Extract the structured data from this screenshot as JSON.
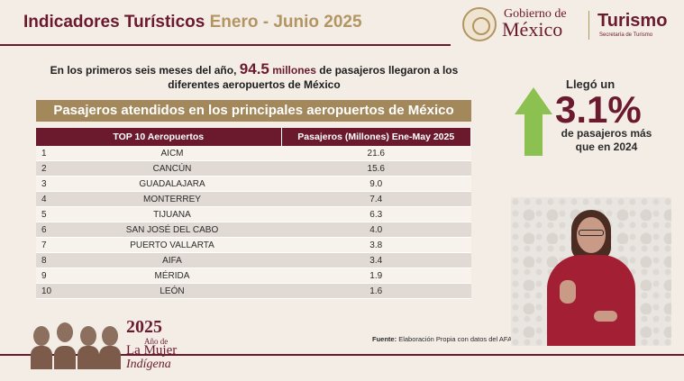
{
  "header": {
    "title_main": "Indicadores Turísticos",
    "title_period": "Enero - Junio 2025"
  },
  "logo": {
    "gobierno": "Gobierno de",
    "mexico": "México",
    "turismo": "Turismo",
    "secretaria": "Secretaría de Turismo"
  },
  "intro": {
    "pre": "En los primeros seis meses del año,",
    "value": "94.5",
    "unit": "millones",
    "post": "de pasajeros llegaron a los diferentes aeropuertos de México"
  },
  "table": {
    "banner": "Pasajeros atendidos en los principales aeropuertos de México",
    "col_airport": "TOP 10 Aeropuertos",
    "col_passengers": "Pasajeros (Millones) Ene-May 2025",
    "rows": [
      {
        "rank": "1",
        "airport": "AICM",
        "passengers": "21.6"
      },
      {
        "rank": "2",
        "airport": "CANCÚN",
        "passengers": "15.6"
      },
      {
        "rank": "3",
        "airport": "GUADALAJARA",
        "passengers": "9.0"
      },
      {
        "rank": "4",
        "airport": "MONTERREY",
        "passengers": "7.4"
      },
      {
        "rank": "5",
        "airport": "TIJUANA",
        "passengers": "6.3"
      },
      {
        "rank": "6",
        "airport": "SAN JOSÉ DEL CABO",
        "passengers": "4.0"
      },
      {
        "rank": "7",
        "airport": "PUERTO VALLARTA",
        "passengers": "3.8"
      },
      {
        "rank": "8",
        "airport": "AIFA",
        "passengers": "3.4"
      },
      {
        "rank": "9",
        "airport": "MÉRIDA",
        "passengers": "1.9"
      },
      {
        "rank": "10",
        "airport": "LEÓN",
        "passengers": "1.6"
      }
    ]
  },
  "source": {
    "label": "Fuente:",
    "text": "Elaboración Propia con datos del AFAC"
  },
  "stat": {
    "line1": "Llegó un",
    "value": "3.1%",
    "line2": "de pasajeros más que en 2024"
  },
  "footer_logo": {
    "year": "2025",
    "ano": "Año de",
    "mujer": "La Mujer",
    "indigena": "Indígena"
  },
  "colors": {
    "guinda": "#6b1a2e",
    "gold": "#a3885c",
    "arrow_green": "#8cc152"
  },
  "icons": {
    "arrow": "arrow-up-icon",
    "seal": "national-seal-icon"
  }
}
